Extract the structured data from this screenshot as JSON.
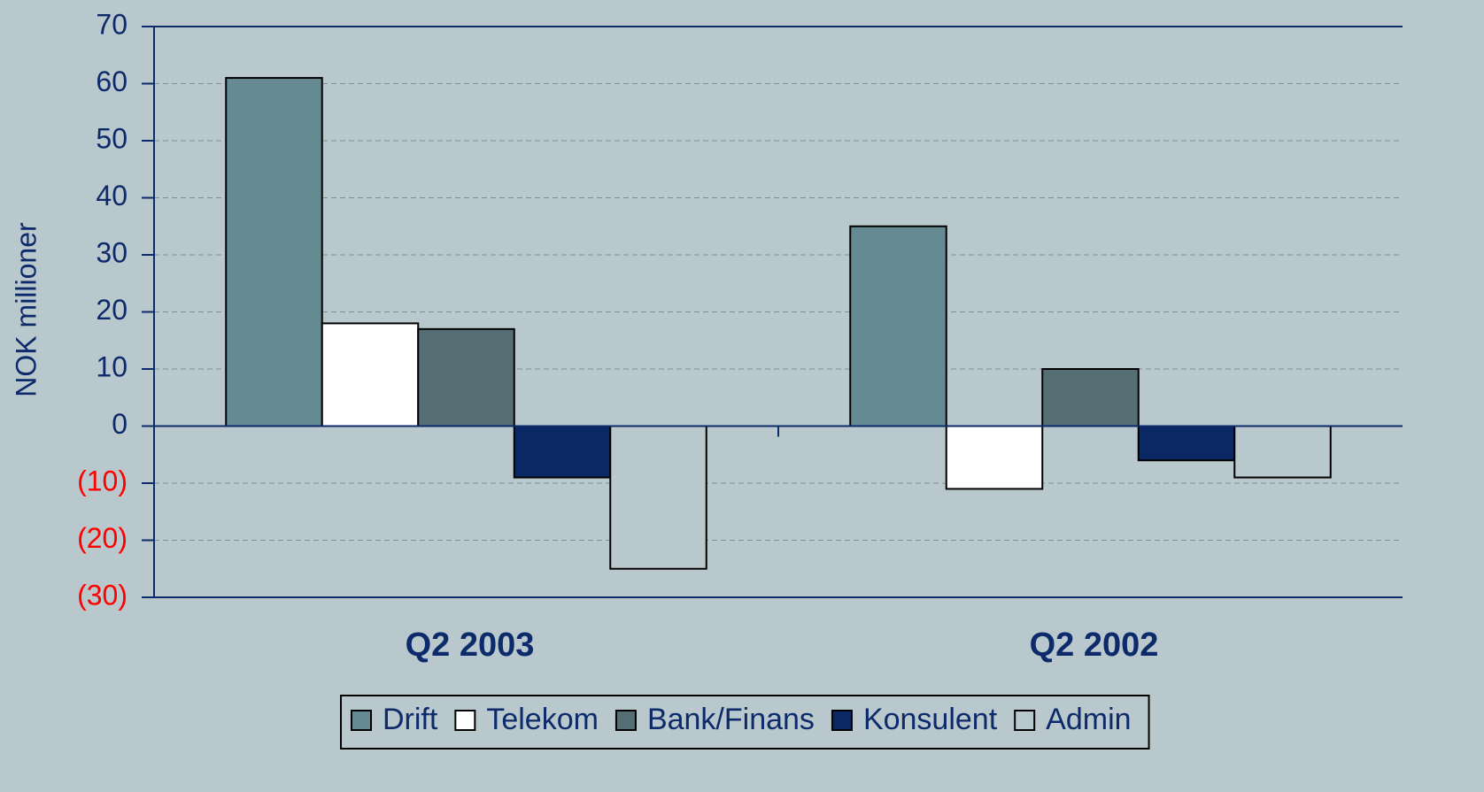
{
  "chart_data": {
    "type": "bar",
    "y_label": "NOK millioner",
    "categories": [
      "Q2 2003",
      "Q2 2002"
    ],
    "series": [
      {
        "name": "Drift",
        "color": "#668a91",
        "values": [
          61,
          35
        ]
      },
      {
        "name": "Telekom",
        "color": "#ffffff",
        "values": [
          18,
          -11
        ]
      },
      {
        "name": "Bank/Finans",
        "color": "#546e74",
        "values": [
          17,
          10
        ]
      },
      {
        "name": "Konsulent",
        "color": "#0a2864",
        "values": [
          -9,
          -6
        ]
      },
      {
        "name": "Admin",
        "color": "#b9c8cc",
        "values": [
          -25,
          -9
        ]
      }
    ],
    "ylim": [
      -30,
      70
    ],
    "yticks": [
      70,
      60,
      50,
      40,
      30,
      20,
      10,
      0,
      {
        "value": -10,
        "label": "(10)"
      },
      {
        "value": -20,
        "label": "(20)"
      },
      {
        "value": -30,
        "label": "(30)"
      }
    ],
    "negative_tick_color": "#ff0000",
    "grid": true,
    "legend": "bottom"
  }
}
